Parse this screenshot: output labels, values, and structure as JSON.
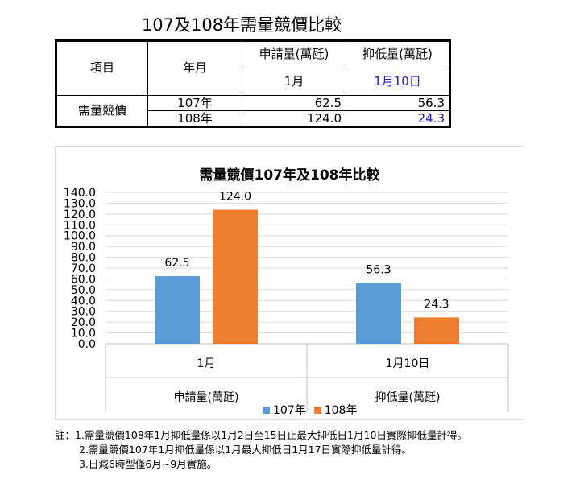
{
  "page_title": "107及108年需量競價比較",
  "table": {
    "h_item": "項目",
    "h_yearmonth": "年月",
    "h_apply": "申請量(萬瓩)",
    "h_suppress": "抑低量(萬瓩)",
    "h_apply_month": "1月",
    "h_suppress_day": "1月10日",
    "row_label": "需量競價",
    "rows": [
      {
        "year": "107年",
        "apply": "62.5",
        "suppress": "56.3"
      },
      {
        "year": "108年",
        "apply": "124.0",
        "suppress": "24.3"
      }
    ]
  },
  "chart_data": {
    "type": "bar",
    "title": "需量競價107年及108年比較",
    "categories": [
      "1月",
      "1月10日"
    ],
    "category_groups": [
      "申請量(萬瓩)",
      "抑低量(萬瓩)"
    ],
    "series": [
      {
        "name": "107年",
        "values": [
          62.5,
          56.3
        ],
        "labels": [
          "62.5",
          "56.3"
        ],
        "color": "#5b9bd5"
      },
      {
        "name": "108年",
        "values": [
          124.0,
          24.3
        ],
        "labels": [
          "124.0",
          "24.3"
        ],
        "color": "#ed7d31"
      }
    ],
    "ylim": [
      0,
      140
    ],
    "yticks": [
      "0.0",
      "10.0",
      "20.0",
      "30.0",
      "40.0",
      "50.0",
      "60.0",
      "70.0",
      "80.0",
      "90.0",
      "100.0",
      "110.0",
      "120.0",
      "130.0",
      "140.0"
    ],
    "grid": true,
    "legend": "bottom"
  },
  "notes": [
    "註：1.需量競價108年1月抑低量係以1月2日至15日止最大抑低日1月10日實際抑低量計得。",
    "2.需量競價107年1月抑低量係以1月最大抑低日1月17日實際抑低量計得。",
    "3.日減6時型僅6月~9月實施。"
  ]
}
